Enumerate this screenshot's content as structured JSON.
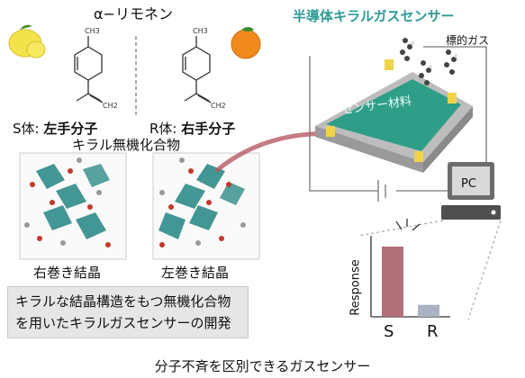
{
  "limonene_label": "α−リモネン",
  "sensor_title": "半導体キラルガスセンサー",
  "target_gas_label": "標的ガス",
  "s_form": {
    "prefix": "S体: ",
    "bold": "左手分子"
  },
  "r_form": {
    "prefix": "R体: ",
    "bold": "右手分子"
  },
  "inorganic_label": "キラル無機化合物",
  "crystal_right_label": "右巻き結晶",
  "crystal_left_label": "左巻き結晶",
  "material_label": "センサー材料",
  "pc_label": "PC",
  "info_box": {
    "line1": "キラルな結晶構造をもつ無機化合物",
    "line2": "を用いたキラルガスセンサーの開発"
  },
  "caption": "分子不斉を区別できるガスセンサー",
  "structure_labels": {
    "ch3": "CH3",
    "ch2": "CH2"
  },
  "colors": {
    "title_teal": "#2e9a96",
    "sensor_green": "#2f9e88",
    "electrode_yellow": "#f1d34b",
    "arrow_red": "#b85a63",
    "bar_s": "#b2707a",
    "bar_r": "#aab3c4",
    "info_box_bg": "#e6e6e6"
  },
  "icons": [
    "lemon-icon",
    "orange-icon",
    "pc-icon",
    "gas-molecule-icon"
  ],
  "chart_data": {
    "type": "bar",
    "categories": [
      "S",
      "R"
    ],
    "values": [
      1.0,
      0.17
    ],
    "ylabel": "Response",
    "xlabel": ""
  }
}
